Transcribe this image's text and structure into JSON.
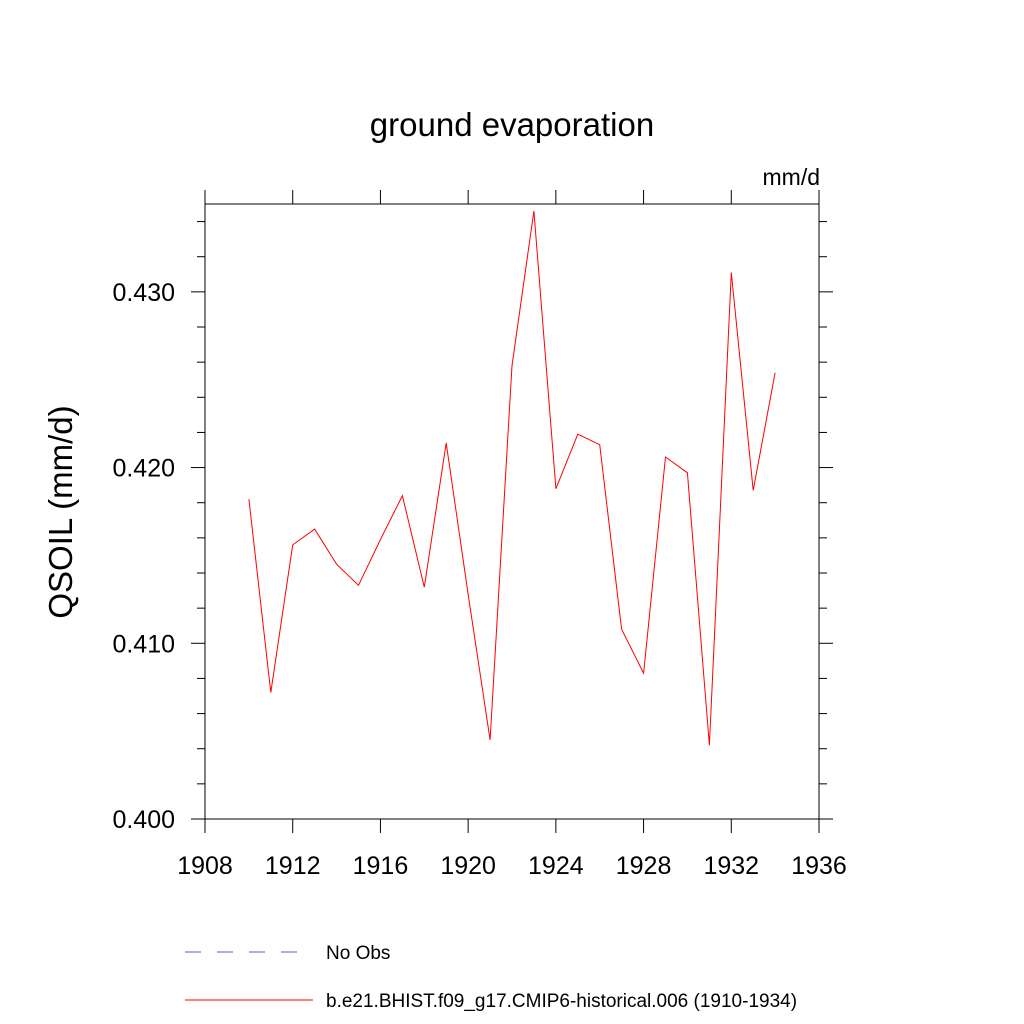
{
  "chart_data": {
    "type": "line",
    "title": "ground evaporation",
    "units_label": "mm/d",
    "ylabel": "QSOIL  (mm/d)",
    "xlabel": "",
    "xlim": [
      1908,
      1936
    ],
    "ylim": [
      0.4,
      0.435
    ],
    "x_ticks": [
      1908,
      1912,
      1916,
      1920,
      1924,
      1928,
      1932,
      1936
    ],
    "x_tick_labels": [
      "1908",
      "1912",
      "1916",
      "1920",
      "1924",
      "1928",
      "1932",
      "1936"
    ],
    "y_ticks": [
      0.4,
      0.41,
      0.42,
      0.43
    ],
    "y_tick_labels": [
      "0.400",
      "0.410",
      "0.420",
      "0.430"
    ],
    "grid": false,
    "legend_position": "bottom",
    "legend": [
      {
        "label": "No Obs",
        "color": "#6a5acd",
        "style": "dashed"
      },
      {
        "label": "b.e21.BHIST.f09_g17.CMIP6-historical.006 (1910-1934)",
        "color": "#ff0000",
        "style": "solid"
      }
    ],
    "series": [
      {
        "name": "b.e21.BHIST.f09_g17.CMIP6-historical.006 (1910-1934)",
        "color": "#ff0000",
        "x": [
          1910,
          1911,
          1912,
          1913,
          1914,
          1915,
          1916,
          1917,
          1918,
          1919,
          1920,
          1921,
          1922,
          1923,
          1924,
          1925,
          1926,
          1927,
          1928,
          1929,
          1930,
          1931,
          1932,
          1933,
          1934
        ],
        "values": [
          0.4182,
          0.4072,
          0.4156,
          0.4165,
          0.4145,
          0.4133,
          0.4159,
          0.4184,
          0.4132,
          0.4214,
          0.4128,
          0.4045,
          0.4258,
          0.4346,
          0.4188,
          0.4219,
          0.4213,
          0.4108,
          0.4083,
          0.4206,
          0.4197,
          0.4042,
          0.4311,
          0.4187,
          0.4254
        ]
      }
    ]
  }
}
